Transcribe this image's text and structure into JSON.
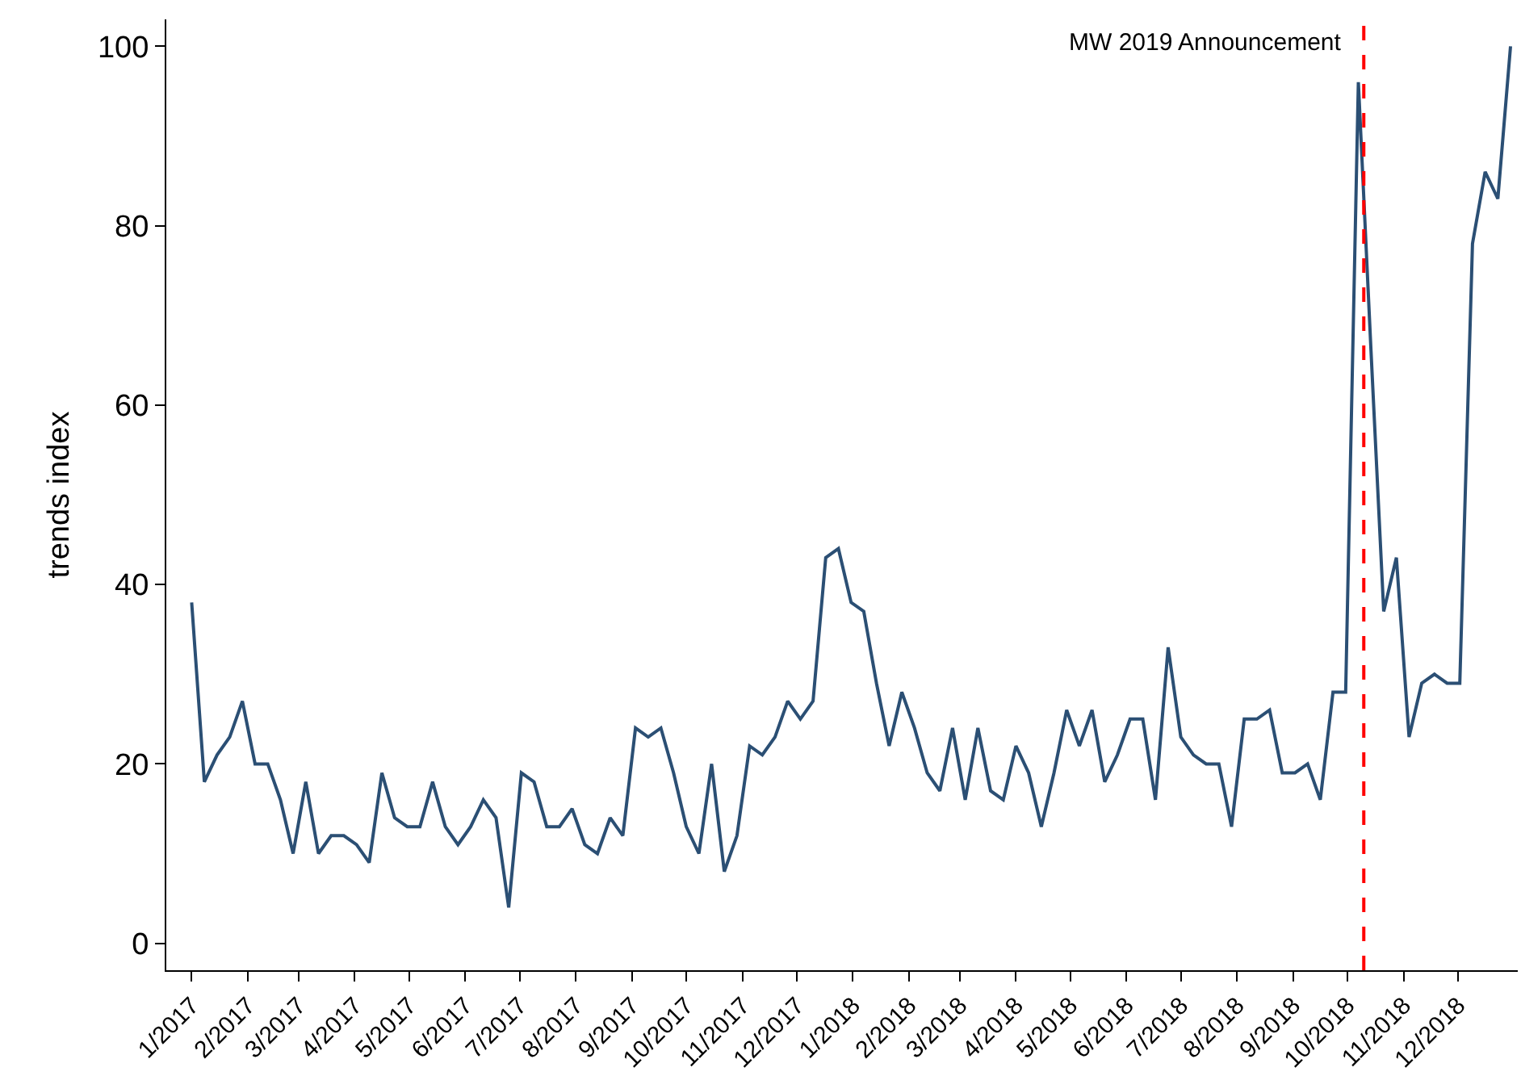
{
  "chart_data": {
    "type": "line",
    "ylabel": "trends index",
    "x": [
      "2017-01-01",
      "2017-01-08",
      "2017-01-15",
      "2017-01-22",
      "2017-01-29",
      "2017-02-05",
      "2017-02-12",
      "2017-02-19",
      "2017-02-26",
      "2017-03-05",
      "2017-03-12",
      "2017-03-19",
      "2017-03-26",
      "2017-04-02",
      "2017-04-09",
      "2017-04-16",
      "2017-04-23",
      "2017-04-30",
      "2017-05-07",
      "2017-05-14",
      "2017-05-21",
      "2017-05-28",
      "2017-06-04",
      "2017-06-11",
      "2017-06-18",
      "2017-06-25",
      "2017-07-02",
      "2017-07-09",
      "2017-07-16",
      "2017-07-23",
      "2017-07-30",
      "2017-08-06",
      "2017-08-13",
      "2017-08-20",
      "2017-08-27",
      "2017-09-03",
      "2017-09-10",
      "2017-09-17",
      "2017-09-24",
      "2017-10-01",
      "2017-10-08",
      "2017-10-15",
      "2017-10-22",
      "2017-10-29",
      "2017-11-05",
      "2017-11-12",
      "2017-11-19",
      "2017-11-26",
      "2017-12-03",
      "2017-12-10",
      "2017-12-17",
      "2017-12-24",
      "2017-12-31",
      "2018-01-07",
      "2018-01-14",
      "2018-01-21",
      "2018-01-28",
      "2018-02-04",
      "2018-02-11",
      "2018-02-18",
      "2018-02-25",
      "2018-03-04",
      "2018-03-11",
      "2018-03-18",
      "2018-03-25",
      "2018-04-01",
      "2018-04-08",
      "2018-04-15",
      "2018-04-22",
      "2018-04-29",
      "2018-05-06",
      "2018-05-13",
      "2018-05-20",
      "2018-05-27",
      "2018-06-03",
      "2018-06-10",
      "2018-06-17",
      "2018-06-24",
      "2018-07-01",
      "2018-07-08",
      "2018-07-15",
      "2018-07-22",
      "2018-07-29",
      "2018-08-05",
      "2018-08-12",
      "2018-08-19",
      "2018-08-26",
      "2018-09-02",
      "2018-09-09",
      "2018-09-16",
      "2018-09-23",
      "2018-09-30",
      "2018-10-07",
      "2018-10-14",
      "2018-10-21",
      "2018-10-28",
      "2018-11-04",
      "2018-11-11",
      "2018-11-18",
      "2018-11-25",
      "2018-12-02",
      "2018-12-09",
      "2018-12-16",
      "2018-12-23",
      "2018-12-30"
    ],
    "series": [
      {
        "color": "#2b4f74",
        "values": [
          38,
          18,
          21,
          23,
          27,
          20,
          20,
          16,
          10,
          18,
          10,
          12,
          12,
          11,
          9,
          19,
          14,
          13,
          13,
          18,
          13,
          11,
          13,
          16,
          14,
          4,
          19,
          18,
          13,
          13,
          15,
          11,
          10,
          14,
          12,
          24,
          23,
          24,
          19,
          13,
          10,
          20,
          8,
          12,
          22,
          21,
          23,
          27,
          25,
          27,
          43,
          44,
          38,
          37,
          29,
          22,
          28,
          24,
          19,
          17,
          24,
          16,
          24,
          17,
          16,
          22,
          19,
          13,
          19,
          26,
          22,
          26,
          18,
          21,
          25,
          25,
          16,
          33,
          23,
          21,
          20,
          20,
          13,
          25,
          25,
          26,
          19,
          19,
          20,
          16,
          28,
          28,
          96,
          66,
          37,
          43,
          23,
          29,
          30,
          29,
          29,
          78,
          86,
          83,
          100
        ]
      }
    ],
    "xlim": [
      "2016-12-18",
      "2019-01-03"
    ],
    "xticks": [
      {
        "value": "2017-01-01",
        "label": "1/2017"
      },
      {
        "value": "2017-02-01",
        "label": "2/2017"
      },
      {
        "value": "2017-03-01",
        "label": "3/2017"
      },
      {
        "value": "2017-04-01",
        "label": "4/2017"
      },
      {
        "value": "2017-05-01",
        "label": "5/2017"
      },
      {
        "value": "2017-06-01",
        "label": "6/2017"
      },
      {
        "value": "2017-07-01",
        "label": "7/2017"
      },
      {
        "value": "2017-08-01",
        "label": "8/2017"
      },
      {
        "value": "2017-09-01",
        "label": "9/2017"
      },
      {
        "value": "2017-10-01",
        "label": "10/2017"
      },
      {
        "value": "2017-11-01",
        "label": "11/2017"
      },
      {
        "value": "2017-12-01",
        "label": "12/2017"
      },
      {
        "value": "2018-01-01",
        "label": "1/2018"
      },
      {
        "value": "2018-02-01",
        "label": "2/2018"
      },
      {
        "value": "2018-03-01",
        "label": "3/2018"
      },
      {
        "value": "2018-04-01",
        "label": "4/2018"
      },
      {
        "value": "2018-05-01",
        "label": "5/2018"
      },
      {
        "value": "2018-06-01",
        "label": "6/2018"
      },
      {
        "value": "2018-07-01",
        "label": "7/2018"
      },
      {
        "value": "2018-08-01",
        "label": "8/2018"
      },
      {
        "value": "2018-09-01",
        "label": "9/2018"
      },
      {
        "value": "2018-10-01",
        "label": "10/2018"
      },
      {
        "value": "2018-11-01",
        "label": "11/2018"
      },
      {
        "value": "2018-12-01",
        "label": "12/2018"
      }
    ],
    "ylim": [
      -3,
      103
    ],
    "yticks": [
      0,
      20,
      40,
      60,
      80,
      100
    ],
    "ref_lines": [
      {
        "axis": "x",
        "value": "2018-10-10",
        "label": "MW 2019 Announcement",
        "color": "#ff0000",
        "line_style": "dashed"
      }
    ],
    "grid": false,
    "marker": "none",
    "line_style": "solid"
  }
}
